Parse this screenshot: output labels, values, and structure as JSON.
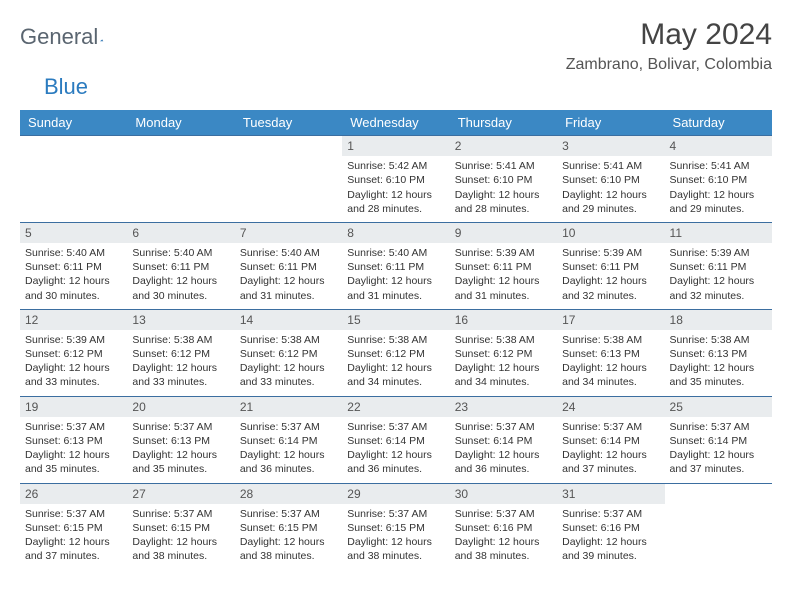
{
  "logo": {
    "word1": "General",
    "word2": "Blue"
  },
  "title": "May 2024",
  "location": "Zambrano, Bolivar, Colombia",
  "colors": {
    "header_bg": "#3b88c4",
    "header_text": "#ffffff",
    "week_border": "#3b6ea0",
    "daynum_bg": "#e9ecee",
    "text": "#333333",
    "logo_gray": "#5a6570",
    "logo_blue": "#2b7bbf"
  },
  "weekdays": [
    "Sunday",
    "Monday",
    "Tuesday",
    "Wednesday",
    "Thursday",
    "Friday",
    "Saturday"
  ],
  "weeks": [
    [
      {
        "n": "",
        "empty": true
      },
      {
        "n": "",
        "empty": true
      },
      {
        "n": "",
        "empty": true
      },
      {
        "n": "1",
        "sr": "5:42 AM",
        "ss": "6:10 PM",
        "dl": "12 hours and 28 minutes."
      },
      {
        "n": "2",
        "sr": "5:41 AM",
        "ss": "6:10 PM",
        "dl": "12 hours and 28 minutes."
      },
      {
        "n": "3",
        "sr": "5:41 AM",
        "ss": "6:10 PM",
        "dl": "12 hours and 29 minutes."
      },
      {
        "n": "4",
        "sr": "5:41 AM",
        "ss": "6:10 PM",
        "dl": "12 hours and 29 minutes."
      }
    ],
    [
      {
        "n": "5",
        "sr": "5:40 AM",
        "ss": "6:11 PM",
        "dl": "12 hours and 30 minutes."
      },
      {
        "n": "6",
        "sr": "5:40 AM",
        "ss": "6:11 PM",
        "dl": "12 hours and 30 minutes."
      },
      {
        "n": "7",
        "sr": "5:40 AM",
        "ss": "6:11 PM",
        "dl": "12 hours and 31 minutes."
      },
      {
        "n": "8",
        "sr": "5:40 AM",
        "ss": "6:11 PM",
        "dl": "12 hours and 31 minutes."
      },
      {
        "n": "9",
        "sr": "5:39 AM",
        "ss": "6:11 PM",
        "dl": "12 hours and 31 minutes."
      },
      {
        "n": "10",
        "sr": "5:39 AM",
        "ss": "6:11 PM",
        "dl": "12 hours and 32 minutes."
      },
      {
        "n": "11",
        "sr": "5:39 AM",
        "ss": "6:11 PM",
        "dl": "12 hours and 32 minutes."
      }
    ],
    [
      {
        "n": "12",
        "sr": "5:39 AM",
        "ss": "6:12 PM",
        "dl": "12 hours and 33 minutes."
      },
      {
        "n": "13",
        "sr": "5:38 AM",
        "ss": "6:12 PM",
        "dl": "12 hours and 33 minutes."
      },
      {
        "n": "14",
        "sr": "5:38 AM",
        "ss": "6:12 PM",
        "dl": "12 hours and 33 minutes."
      },
      {
        "n": "15",
        "sr": "5:38 AM",
        "ss": "6:12 PM",
        "dl": "12 hours and 34 minutes."
      },
      {
        "n": "16",
        "sr": "5:38 AM",
        "ss": "6:12 PM",
        "dl": "12 hours and 34 minutes."
      },
      {
        "n": "17",
        "sr": "5:38 AM",
        "ss": "6:13 PM",
        "dl": "12 hours and 34 minutes."
      },
      {
        "n": "18",
        "sr": "5:38 AM",
        "ss": "6:13 PM",
        "dl": "12 hours and 35 minutes."
      }
    ],
    [
      {
        "n": "19",
        "sr": "5:37 AM",
        "ss": "6:13 PM",
        "dl": "12 hours and 35 minutes."
      },
      {
        "n": "20",
        "sr": "5:37 AM",
        "ss": "6:13 PM",
        "dl": "12 hours and 35 minutes."
      },
      {
        "n": "21",
        "sr": "5:37 AM",
        "ss": "6:14 PM",
        "dl": "12 hours and 36 minutes."
      },
      {
        "n": "22",
        "sr": "5:37 AM",
        "ss": "6:14 PM",
        "dl": "12 hours and 36 minutes."
      },
      {
        "n": "23",
        "sr": "5:37 AM",
        "ss": "6:14 PM",
        "dl": "12 hours and 36 minutes."
      },
      {
        "n": "24",
        "sr": "5:37 AM",
        "ss": "6:14 PM",
        "dl": "12 hours and 37 minutes."
      },
      {
        "n": "25",
        "sr": "5:37 AM",
        "ss": "6:14 PM",
        "dl": "12 hours and 37 minutes."
      }
    ],
    [
      {
        "n": "26",
        "sr": "5:37 AM",
        "ss": "6:15 PM",
        "dl": "12 hours and 37 minutes."
      },
      {
        "n": "27",
        "sr": "5:37 AM",
        "ss": "6:15 PM",
        "dl": "12 hours and 38 minutes."
      },
      {
        "n": "28",
        "sr": "5:37 AM",
        "ss": "6:15 PM",
        "dl": "12 hours and 38 minutes."
      },
      {
        "n": "29",
        "sr": "5:37 AM",
        "ss": "6:15 PM",
        "dl": "12 hours and 38 minutes."
      },
      {
        "n": "30",
        "sr": "5:37 AM",
        "ss": "6:16 PM",
        "dl": "12 hours and 38 minutes."
      },
      {
        "n": "31",
        "sr": "5:37 AM",
        "ss": "6:16 PM",
        "dl": "12 hours and 39 minutes."
      },
      {
        "n": "",
        "empty": true
      }
    ]
  ],
  "labels": {
    "sunrise": "Sunrise:",
    "sunset": "Sunset:",
    "daylight": "Daylight:"
  }
}
